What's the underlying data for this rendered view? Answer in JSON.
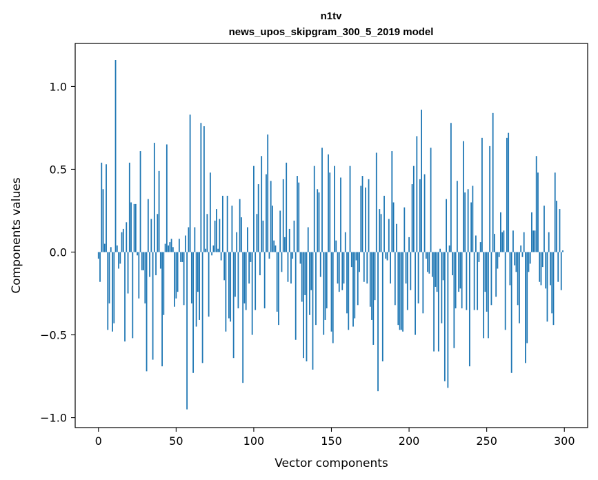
{
  "chart_data": {
    "type": "bar",
    "title_line1": "n1tv",
    "title_line2": "news_upos_skipgram_300_5_2019 model",
    "xlabel": "Vector components",
    "ylabel": "Components values",
    "xlim": [
      -15,
      315
    ],
    "ylim": [
      -1.06,
      1.26
    ],
    "xticks": [
      0,
      50,
      100,
      150,
      200,
      250,
      300
    ],
    "xtick_labels": [
      "0",
      "50",
      "100",
      "150",
      "200",
      "250",
      "300"
    ],
    "yticks": [
      -1.0,
      -0.5,
      0.0,
      0.5,
      1.0
    ],
    "ytick_labels": [
      "−1.0",
      "−0.5",
      "0.0",
      "0.5",
      "1.0"
    ],
    "bar_color": "#1f77b4",
    "values": [
      -0.04,
      -0.18,
      0.54,
      0.38,
      0.05,
      0.53,
      -0.47,
      -0.31,
      0.03,
      -0.48,
      -0.43,
      1.16,
      0.04,
      -0.1,
      -0.07,
      0.12,
      0.14,
      -0.54,
      0.18,
      -0.25,
      0.54,
      0.3,
      -0.52,
      0.29,
      0.29,
      -0.02,
      -0.28,
      0.61,
      -0.11,
      -0.11,
      -0.31,
      -0.72,
      0.32,
      -0.15,
      0.2,
      -0.65,
      0.66,
      -0.14,
      0.23,
      0.49,
      -0.1,
      -0.69,
      -0.38,
      0.05,
      0.65,
      0.04,
      0.06,
      0.08,
      0.03,
      -0.33,
      -0.28,
      -0.24,
      0.08,
      -0.06,
      -0.06,
      -0.32,
      0.1,
      -0.95,
      0.15,
      0.83,
      -0.31,
      -0.73,
      0.15,
      -0.45,
      -0.24,
      -0.41,
      0.78,
      -0.67,
      0.76,
      0.02,
      0.23,
      -0.39,
      0.48,
      -0.02,
      0.04,
      0.19,
      0.26,
      0.02,
      0.2,
      -0.05,
      0.34,
      -0.17,
      -0.48,
      0.34,
      -0.4,
      -0.42,
      0.28,
      -0.64,
      -0.27,
      0.12,
      -0.34,
      0.32,
      0.21,
      -0.79,
      -0.31,
      -0.35,
      0.15,
      -0.19,
      -0.06,
      -0.5,
      0.52,
      -0.35,
      0.23,
      0.41,
      -0.14,
      0.58,
      0.19,
      -0.34,
      0.47,
      0.71,
      -0.04,
      0.43,
      0.28,
      0.07,
      0.04,
      -0.36,
      -0.44,
      0.25,
      -0.12,
      0.44,
      0.09,
      0.54,
      -0.18,
      0.14,
      -0.19,
      -0.04,
      0.19,
      -0.53,
      0.46,
      0.42,
      -0.07,
      -0.3,
      -0.64,
      -0.26,
      -0.66,
      0.15,
      -0.38,
      -0.23,
      -0.71,
      0.52,
      -0.44,
      0.38,
      0.36,
      -0.15,
      0.63,
      -0.5,
      -0.41,
      -0.34,
      0.59,
      0.48,
      -0.48,
      -0.55,
      0.52,
      0.07,
      -0.19,
      -0.24,
      0.45,
      -0.23,
      -0.19,
      0.12,
      -0.37,
      -0.47,
      0.52,
      -0.09,
      -0.45,
      -0.4,
      -0.05,
      -0.32,
      -0.12,
      0.4,
      0.46,
      -0.18,
      0.39,
      -0.19,
      0.44,
      -0.33,
      -0.41,
      -0.56,
      -0.29,
      0.6,
      -0.84,
      0.26,
      0.23,
      -0.66,
      0.34,
      -0.04,
      -0.05,
      0.2,
      -0.19,
      0.61,
      0.3,
      -0.32,
      0.17,
      -0.44,
      -0.47,
      -0.47,
      -0.48,
      0.27,
      -0.19,
      -0.35,
      0.09,
      -0.23,
      0.41,
      0.52,
      -0.5,
      0.7,
      -0.31,
      0.44,
      0.86,
      -0.37,
      0.47,
      -0.04,
      -0.12,
      -0.13,
      0.63,
      -0.15,
      -0.6,
      -0.21,
      -0.24,
      -0.6,
      0.02,
      -0.43,
      -0.17,
      -0.78,
      0.32,
      -0.82,
      0.04,
      0.78,
      -0.14,
      -0.58,
      -0.34,
      0.43,
      -0.24,
      -0.22,
      -0.34,
      0.67,
      0.36,
      -0.35,
      0.38,
      -0.69,
      0.3,
      0.4,
      -0.35,
      0.1,
      -0.35,
      -0.06,
      0.06,
      0.69,
      -0.52,
      -0.24,
      -0.36,
      -0.52,
      0.64,
      -0.32,
      0.84,
      0.11,
      -0.27,
      -0.1,
      -0.03,
      0.24,
      0.12,
      0.13,
      -0.47,
      0.69,
      0.72,
      -0.2,
      -0.73,
      0.13,
      -0.08,
      -0.12,
      -0.32,
      -0.43,
      0.04,
      -0.03,
      0.12,
      -0.67,
      -0.55,
      -0.12,
      -0.07,
      0.24,
      0.13,
      0.13,
      0.58,
      0.48,
      -0.18,
      -0.2,
      -0.09,
      0.28,
      -0.22,
      -0.42,
      0.12,
      -0.2,
      -0.37,
      -0.44,
      0.48,
      0.31,
      -0.18,
      0.26,
      -0.23,
      0.01
    ]
  }
}
